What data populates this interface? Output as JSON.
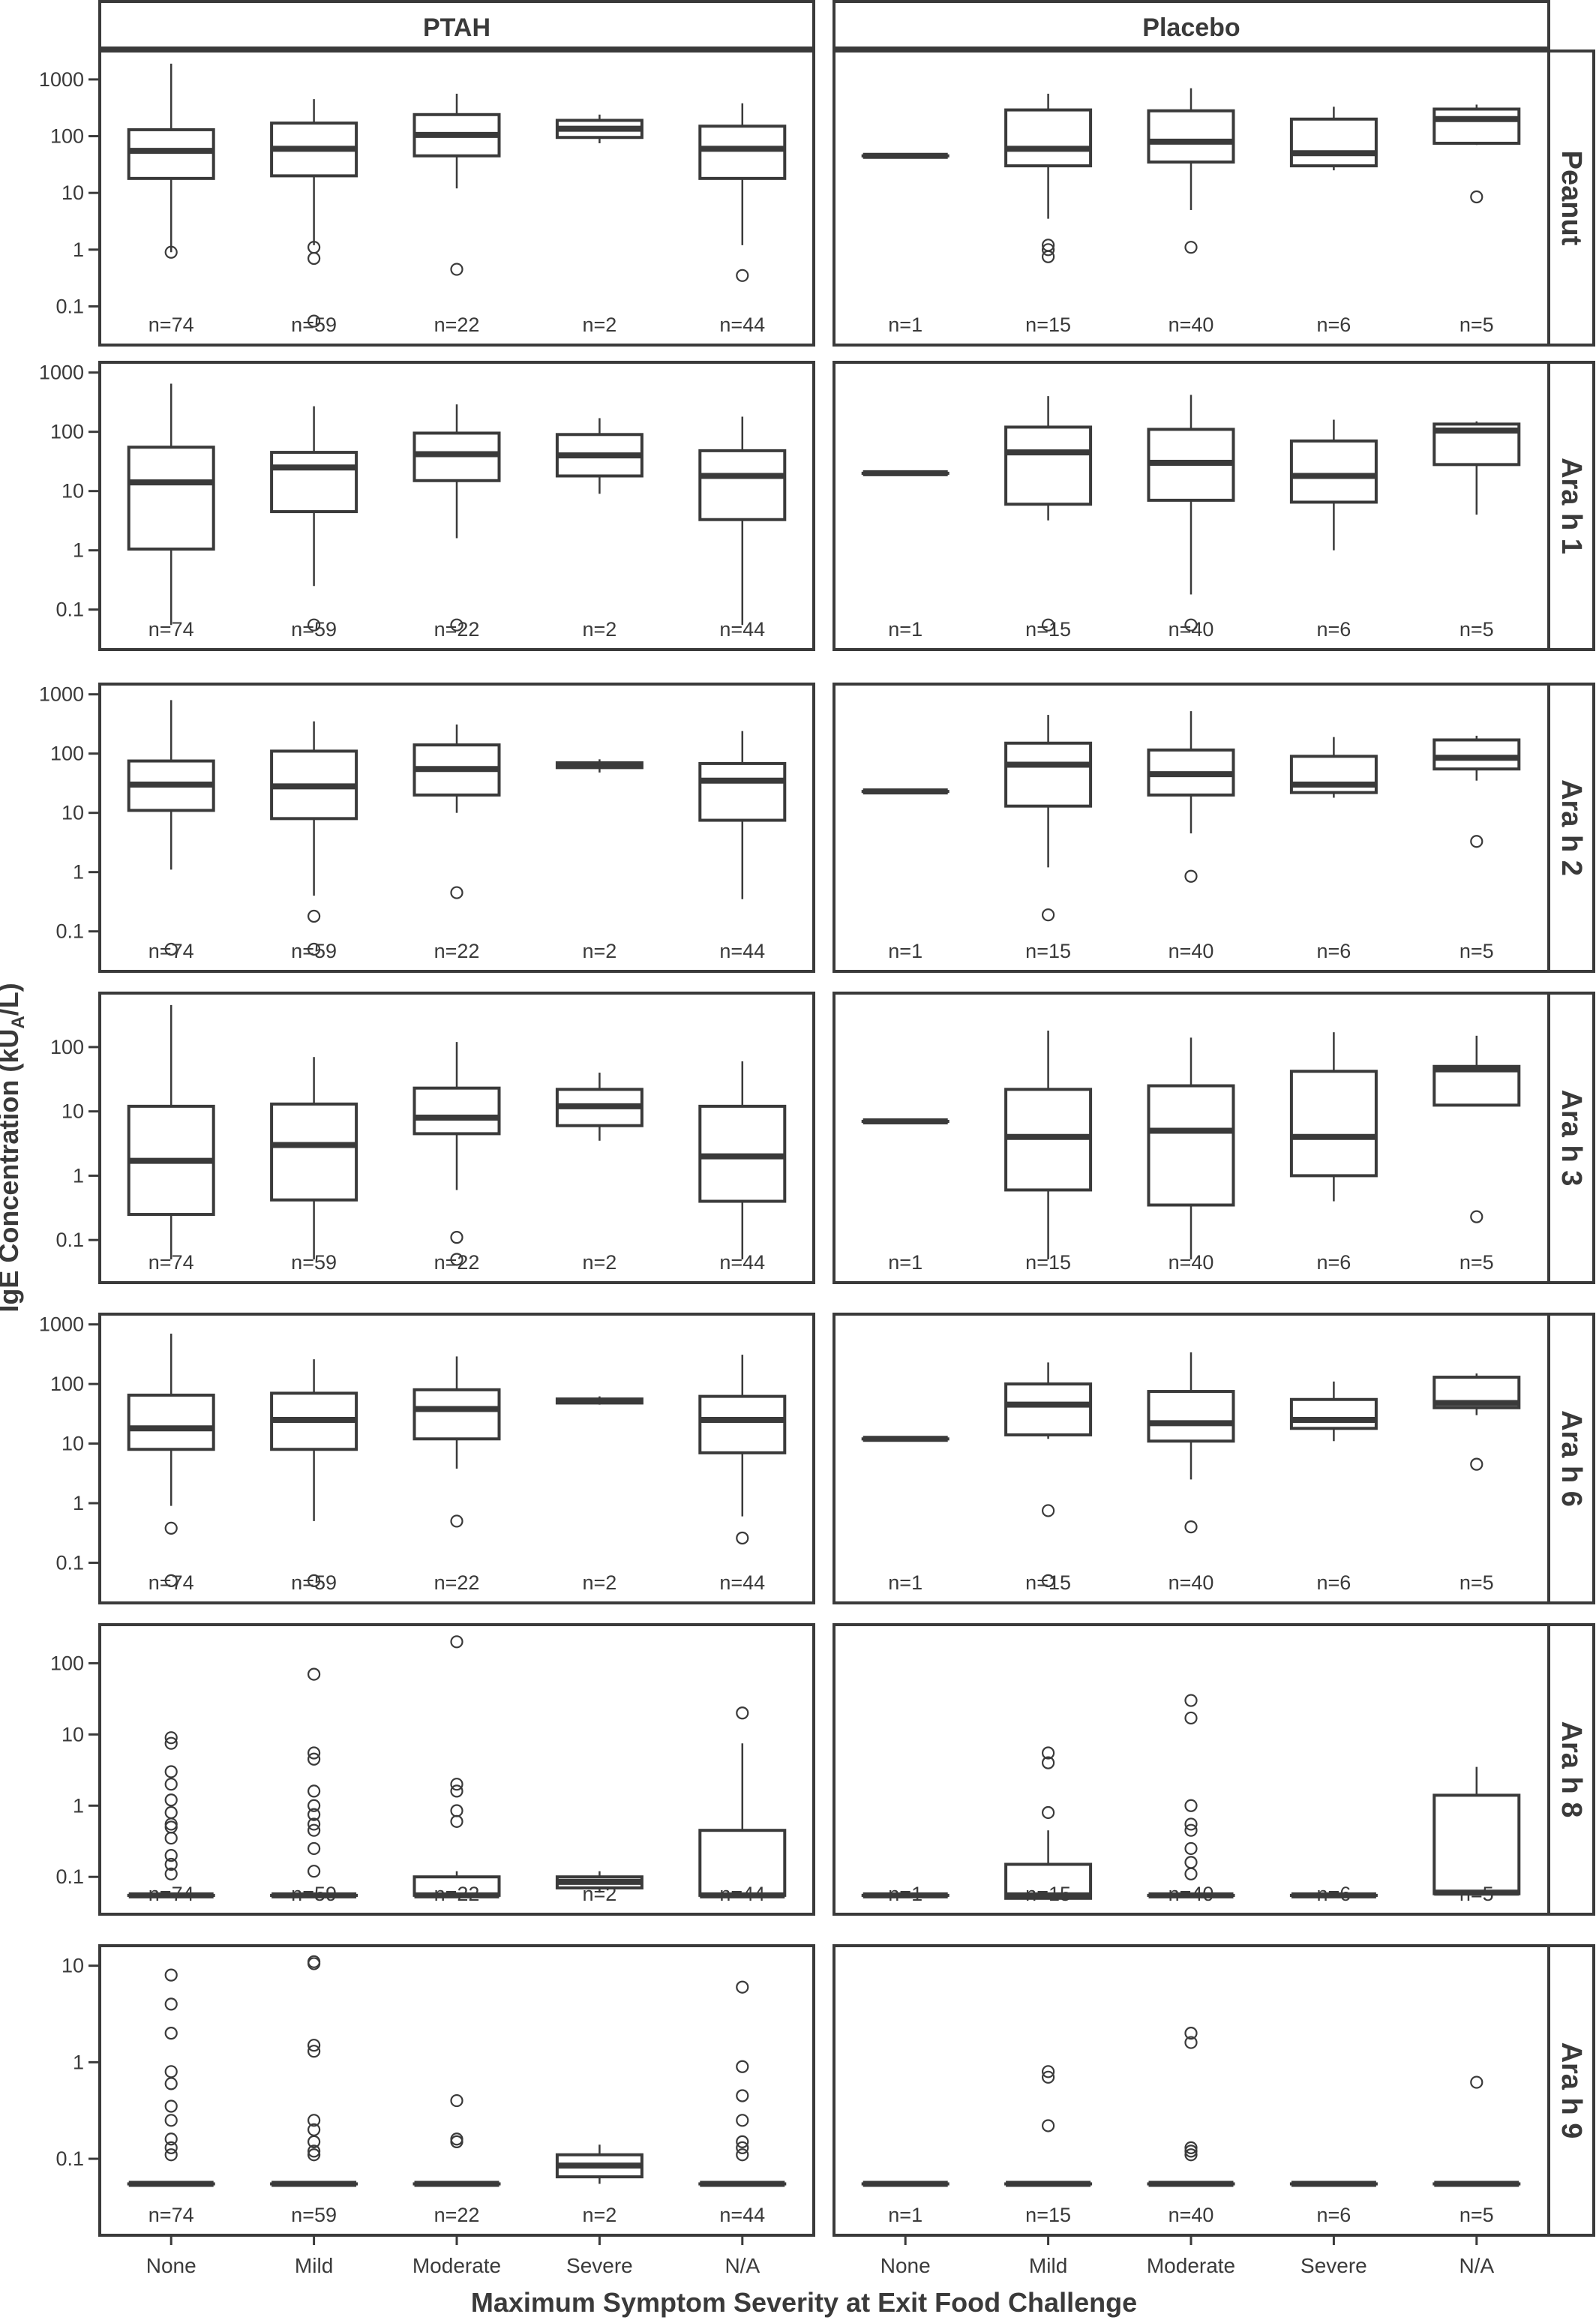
{
  "chart_data": {
    "type": "boxplot",
    "facet_cols": [
      "PTAH",
      "Placebo"
    ],
    "facet_rows": [
      "Peanut",
      "Ara h 1",
      "Ara h 2",
      "Ara h 3",
      "Ara h 6",
      "Ara h 8",
      "Ara h 9"
    ],
    "categories": [
      "None",
      "Mild",
      "Moderate",
      "Severe",
      "N/A"
    ],
    "xlabel": "Maximum Symptom Severity at Exit Food Challenge",
    "ylabel_parts": {
      "main": "IgE Concentration (kU",
      "sub": "A",
      "end": "/L)"
    },
    "y_scale": "log10",
    "counts": {
      "PTAH": [
        "n=74",
        "n=59",
        "n=22",
        "n=2",
        "n=44"
      ],
      "Placebo": [
        "n=1",
        "n=15",
        "n=40",
        "n=6",
        "n=5"
      ]
    },
    "panels": [
      {
        "row": "Peanut",
        "ylim": [
          0.03,
          2200
        ],
        "yticks": [
          {
            "v": 0.1,
            "label": "0.1"
          },
          {
            "v": 1,
            "label": "1"
          },
          {
            "v": 10,
            "label": "10"
          },
          {
            "v": 100,
            "label": "100"
          },
          {
            "v": 1000,
            "label": "1000"
          }
        ],
        "PTAH": [
          {
            "lw": 0.9,
            "q1": 18,
            "med": 55,
            "q3": 130,
            "uw": 1900,
            "out": [
              0.9
            ]
          },
          {
            "lw": 1.2,
            "q1": 20,
            "med": 60,
            "q3": 170,
            "uw": 450,
            "out": [
              1.1,
              0.7,
              0.055
            ]
          },
          {
            "lw": 12,
            "q1": 45,
            "med": 105,
            "q3": 240,
            "uw": 560,
            "out": [
              0.45
            ]
          },
          {
            "lw": 75,
            "q1": 95,
            "med": 135,
            "q3": 190,
            "uw": 240,
            "out": []
          },
          {
            "lw": 1.2,
            "q1": 18,
            "med": 60,
            "q3": 150,
            "uw": 380,
            "out": [
              0.35
            ]
          }
        ],
        "Placebo": [
          {
            "lw": 45,
            "q1": 45,
            "med": 45,
            "q3": 45,
            "uw": 45,
            "out": []
          },
          {
            "lw": 3.5,
            "q1": 30,
            "med": 60,
            "q3": 290,
            "uw": 560,
            "out": [
              1.2,
              1.0,
              0.75
            ]
          },
          {
            "lw": 5,
            "q1": 35,
            "med": 80,
            "q3": 280,
            "uw": 700,
            "out": [
              1.1
            ]
          },
          {
            "lw": 25,
            "q1": 30,
            "med": 50,
            "q3": 200,
            "uw": 330,
            "out": []
          },
          {
            "lw": 70,
            "q1": 75,
            "med": 200,
            "q3": 300,
            "uw": 360,
            "out": [
              8.5
            ]
          }
        ]
      },
      {
        "row": "Ara h 1",
        "ylim": [
          0.03,
          1050
        ],
        "yticks": [
          {
            "v": 0.1,
            "label": "0.1"
          },
          {
            "v": 1,
            "label": "1"
          },
          {
            "v": 10,
            "label": "10"
          },
          {
            "v": 100,
            "label": "100"
          },
          {
            "v": 1000,
            "label": "1000"
          }
        ],
        "PTAH": [
          {
            "lw": 0.055,
            "q1": 1.05,
            "med": 14,
            "q3": 55,
            "uw": 650,
            "out": []
          },
          {
            "lw": 0.25,
            "q1": 4.5,
            "med": 25,
            "q3": 45,
            "uw": 270,
            "out": [
              0.055
            ]
          },
          {
            "lw": 1.6,
            "q1": 15,
            "med": 42,
            "q3": 95,
            "uw": 290,
            "out": [
              0.055
            ]
          },
          {
            "lw": 9,
            "q1": 18,
            "med": 40,
            "q3": 90,
            "uw": 170,
            "out": []
          },
          {
            "lw": 0.055,
            "q1": 3.3,
            "med": 18,
            "q3": 48,
            "uw": 180,
            "out": []
          }
        ],
        "Placebo": [
          {
            "lw": 20,
            "q1": 20,
            "med": 20,
            "q3": 20,
            "uw": 20,
            "out": []
          },
          {
            "lw": 3.2,
            "q1": 6,
            "med": 45,
            "q3": 120,
            "uw": 400,
            "out": [
              0.055
            ]
          },
          {
            "lw": 0.18,
            "q1": 7,
            "med": 30,
            "q3": 110,
            "uw": 420,
            "out": [
              0.055
            ]
          },
          {
            "lw": 1,
            "q1": 6.5,
            "med": 18,
            "q3": 70,
            "uw": 160,
            "out": []
          },
          {
            "lw": 4,
            "q1": 28,
            "med": 105,
            "q3": 135,
            "uw": 150,
            "out": []
          }
        ]
      },
      {
        "row": "Ara h 2",
        "ylim": [
          0.03,
          1050
        ],
        "yticks": [
          {
            "v": 0.1,
            "label": "0.1"
          },
          {
            "v": 1,
            "label": "1"
          },
          {
            "v": 10,
            "label": "10"
          },
          {
            "v": 100,
            "label": "100"
          },
          {
            "v": 1000,
            "label": "1000"
          }
        ],
        "PTAH": [
          {
            "lw": 1.1,
            "q1": 11,
            "med": 30,
            "q3": 75,
            "uw": 800,
            "out": [
              0.05
            ]
          },
          {
            "lw": 0.4,
            "q1": 8,
            "med": 28,
            "q3": 110,
            "uw": 350,
            "out": [
              0.18,
              0.05
            ]
          },
          {
            "lw": 10,
            "q1": 20,
            "med": 55,
            "q3": 140,
            "uw": 310,
            "out": [
              0.45
            ]
          },
          {
            "lw": 48,
            "q1": 58,
            "med": 65,
            "q3": 70,
            "uw": 80,
            "out": []
          },
          {
            "lw": 0.35,
            "q1": 7.5,
            "med": 35,
            "q3": 68,
            "uw": 240,
            "out": []
          }
        ],
        "Placebo": [
          {
            "lw": 23,
            "q1": 23,
            "med": 23,
            "q3": 23,
            "uw": 23,
            "out": []
          },
          {
            "lw": 1.2,
            "q1": 13,
            "med": 65,
            "q3": 150,
            "uw": 450,
            "out": [
              0.19
            ]
          },
          {
            "lw": 4.5,
            "q1": 20,
            "med": 45,
            "q3": 115,
            "uw": 520,
            "out": [
              0.85
            ]
          },
          {
            "lw": 18,
            "q1": 22,
            "med": 30,
            "q3": 90,
            "uw": 190,
            "out": []
          },
          {
            "lw": 35,
            "q1": 55,
            "med": 85,
            "q3": 170,
            "uw": 200,
            "out": [
              3.3
            ]
          }
        ]
      },
      {
        "row": "Ara h 3",
        "ylim": [
          0.03,
          500
        ],
        "yticks": [
          {
            "v": 0.1,
            "label": "0.1"
          },
          {
            "v": 1,
            "label": "1"
          },
          {
            "v": 10,
            "label": "10"
          },
          {
            "v": 100,
            "label": "100"
          }
        ],
        "PTAH": [
          {
            "lw": 0.05,
            "q1": 0.25,
            "med": 1.7,
            "q3": 12,
            "uw": 450,
            "out": []
          },
          {
            "lw": 0.05,
            "q1": 0.42,
            "med": 3.0,
            "q3": 13,
            "uw": 70,
            "out": []
          },
          {
            "lw": 0.6,
            "q1": 4.5,
            "med": 8,
            "q3": 23,
            "uw": 120,
            "out": [
              0.11,
              0.05
            ]
          },
          {
            "lw": 3.5,
            "q1": 6,
            "med": 12,
            "q3": 22,
            "uw": 40,
            "out": []
          },
          {
            "lw": 0.05,
            "q1": 0.4,
            "med": 2.0,
            "q3": 12,
            "uw": 60,
            "out": []
          }
        ],
        "Placebo": [
          {
            "lw": 7,
            "q1": 7,
            "med": 7,
            "q3": 7,
            "uw": 7,
            "out": []
          },
          {
            "lw": 0.05,
            "q1": 0.6,
            "med": 4,
            "q3": 22,
            "uw": 180,
            "out": []
          },
          {
            "lw": 0.05,
            "q1": 0.35,
            "med": 5,
            "q3": 25,
            "uw": 140,
            "out": []
          },
          {
            "lw": 0.4,
            "q1": 1,
            "med": 4,
            "q3": 42,
            "uw": 170,
            "out": []
          },
          {
            "lw": 12,
            "q1": 12.5,
            "med": 45,
            "q3": 50,
            "uw": 150,
            "out": [
              0.23
            ]
          }
        ]
      },
      {
        "row": "Ara h 6",
        "ylim": [
          0.03,
          1050
        ],
        "yticks": [
          {
            "v": 0.1,
            "label": "0.1"
          },
          {
            "v": 1,
            "label": "1"
          },
          {
            "v": 10,
            "label": "10"
          },
          {
            "v": 100,
            "label": "100"
          },
          {
            "v": 1000,
            "label": "1000"
          }
        ],
        "PTAH": [
          {
            "lw": 0.9,
            "q1": 8,
            "med": 18,
            "q3": 65,
            "uw": 700,
            "out": [
              0.38,
              0.05
            ]
          },
          {
            "lw": 0.5,
            "q1": 8,
            "med": 25,
            "q3": 70,
            "uw": 260,
            "out": [
              0.05
            ]
          },
          {
            "lw": 3.8,
            "q1": 12,
            "med": 38,
            "q3": 80,
            "uw": 290,
            "out": [
              0.5
            ]
          },
          {
            "lw": 45,
            "q1": 48,
            "med": 52,
            "q3": 56,
            "uw": 62,
            "out": []
          },
          {
            "lw": 0.6,
            "q1": 7,
            "med": 25,
            "q3": 62,
            "uw": 310,
            "out": [
              0.26
            ]
          }
        ],
        "Placebo": [
          {
            "lw": 12,
            "q1": 12,
            "med": 12,
            "q3": 12,
            "uw": 12,
            "out": []
          },
          {
            "lw": 12,
            "q1": 14,
            "med": 45,
            "q3": 100,
            "uw": 230,
            "out": [
              0.75,
              0.05
            ]
          },
          {
            "lw": 2.5,
            "q1": 11,
            "med": 22,
            "q3": 75,
            "uw": 340,
            "out": [
              0.4
            ]
          },
          {
            "lw": 11,
            "q1": 18,
            "med": 25,
            "q3": 55,
            "uw": 110,
            "out": []
          },
          {
            "lw": 30,
            "q1": 40,
            "med": 48,
            "q3": 130,
            "uw": 150,
            "out": [
              4.5
            ]
          }
        ]
      },
      {
        "row": "Ara h 8",
        "ylim": [
          0.04,
          260
        ],
        "yticks": [
          {
            "v": 0.1,
            "label": "0.1"
          },
          {
            "v": 1,
            "label": "1"
          },
          {
            "v": 10,
            "label": "10"
          },
          {
            "v": 100,
            "label": "100"
          }
        ],
        "PTAH": [
          {
            "lw": 0.055,
            "q1": 0.055,
            "med": 0.055,
            "q3": 0.055,
            "uw": 0.055,
            "out": [
              9.0,
              7.5,
              3.0,
              2.0,
              1.2,
              0.8,
              0.55,
              0.5,
              0.35,
              0.2,
              0.15,
              0.11
            ]
          },
          {
            "lw": 0.055,
            "q1": 0.055,
            "med": 0.055,
            "q3": 0.055,
            "uw": 0.055,
            "out": [
              70,
              5.5,
              4.5,
              1.6,
              1.0,
              0.75,
              0.55,
              0.45,
              0.25,
              0.12
            ]
          },
          {
            "lw": 0.055,
            "q1": 0.055,
            "med": 0.055,
            "q3": 0.1,
            "uw": 0.12,
            "out": [
              200,
              2.0,
              1.6,
              0.85,
              0.6
            ]
          },
          {
            "lw": 0.06,
            "q1": 0.07,
            "med": 0.085,
            "q3": 0.1,
            "uw": 0.12,
            "out": []
          },
          {
            "lw": 0.055,
            "q1": 0.055,
            "med": 0.055,
            "q3": 0.45,
            "uw": 7.5,
            "out": [
              20
            ]
          }
        ],
        "Placebo": [
          {
            "lw": 0.055,
            "q1": 0.055,
            "med": 0.055,
            "q3": 0.055,
            "uw": 0.055,
            "out": []
          },
          {
            "lw": 0.055,
            "q1": 0.05,
            "med": 0.055,
            "q3": 0.15,
            "uw": 0.45,
            "out": [
              5.5,
              4.0,
              0.8
            ]
          },
          {
            "lw": 0.055,
            "q1": 0.055,
            "med": 0.055,
            "q3": 0.055,
            "uw": 0.055,
            "out": [
              30,
              17,
              1.0,
              0.55,
              0.45,
              0.25,
              0.16,
              0.11
            ]
          },
          {
            "lw": 0.055,
            "q1": 0.055,
            "med": 0.055,
            "q3": 0.055,
            "uw": 0.055,
            "out": []
          },
          {
            "lw": 0.055,
            "q1": 0.058,
            "med": 0.06,
            "q3": 1.4,
            "uw": 3.5,
            "out": []
          }
        ]
      },
      {
        "row": "Ara h 9",
        "ylim": [
          0.02,
          13
        ],
        "yticks": [
          {
            "v": 0.1,
            "label": "0.1"
          },
          {
            "v": 1,
            "label": "1"
          },
          {
            "v": 10,
            "label": "10"
          }
        ],
        "PTAH": [
          {
            "lw": 0.055,
            "q1": 0.055,
            "med": 0.055,
            "q3": 0.055,
            "uw": 0.055,
            "out": [
              8,
              4,
              2,
              0.8,
              0.6,
              0.35,
              0.25,
              0.16,
              0.13,
              0.11
            ]
          },
          {
            "lw": 0.055,
            "q1": 0.055,
            "med": 0.055,
            "q3": 0.055,
            "uw": 0.055,
            "out": [
              11,
              10.5,
              1.5,
              1.3,
              0.25,
              0.2,
              0.15,
              0.12,
              0.11
            ]
          },
          {
            "lw": 0.055,
            "q1": 0.055,
            "med": 0.055,
            "q3": 0.055,
            "uw": 0.055,
            "out": [
              0.4,
              0.16,
              0.15
            ]
          },
          {
            "lw": 0.055,
            "q1": 0.065,
            "med": 0.085,
            "q3": 0.11,
            "uw": 0.14,
            "out": []
          },
          {
            "lw": 0.055,
            "q1": 0.055,
            "med": 0.055,
            "q3": 0.055,
            "uw": 0.055,
            "out": [
              6,
              0.9,
              0.45,
              0.25,
              0.15,
              0.13,
              0.11
            ]
          }
        ],
        "Placebo": [
          {
            "lw": 0.055,
            "q1": 0.055,
            "med": 0.055,
            "q3": 0.055,
            "uw": 0.055,
            "out": []
          },
          {
            "lw": 0.055,
            "q1": 0.055,
            "med": 0.055,
            "q3": 0.055,
            "uw": 0.055,
            "out": [
              0.8,
              0.7,
              0.22
            ]
          },
          {
            "lw": 0.055,
            "q1": 0.055,
            "med": 0.055,
            "q3": 0.055,
            "uw": 0.055,
            "out": [
              2.0,
              1.6,
              0.13,
              0.12,
              0.11
            ]
          },
          {
            "lw": 0.055,
            "q1": 0.055,
            "med": 0.055,
            "q3": 0.055,
            "uw": 0.055,
            "out": []
          },
          {
            "lw": 0.055,
            "q1": 0.055,
            "med": 0.055,
            "q3": 0.055,
            "uw": 0.055,
            "out": [
              0.62
            ]
          }
        ]
      }
    ]
  }
}
